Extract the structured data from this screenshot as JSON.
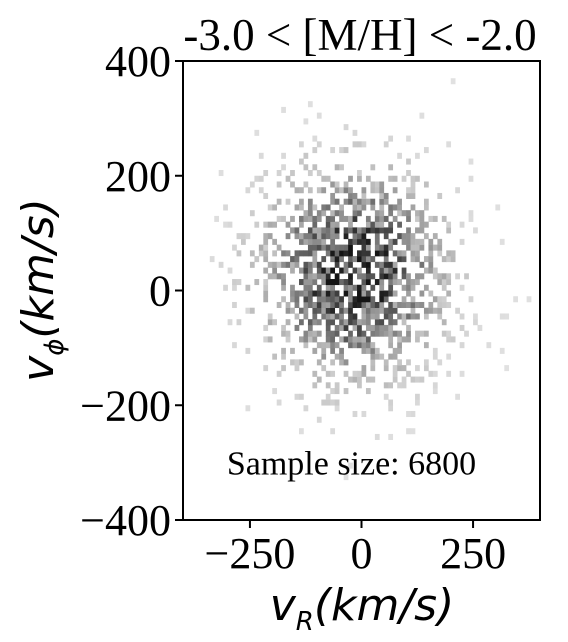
{
  "chart_data": {
    "type": "heatmap",
    "title": "-3.0 < [M/H] < -2.0",
    "xlabel": {
      "main": "v",
      "sub": "R",
      "unit": "(km/s)"
    },
    "ylabel": {
      "main": "v",
      "sub": "ϕ",
      "unit": "(km/s)"
    },
    "xlim": [
      -400,
      400
    ],
    "ylim": [
      -400,
      400
    ],
    "xticks": [
      -250,
      0,
      250
    ],
    "xtick_labels": [
      "−250",
      "0",
      "250"
    ],
    "yticks": [
      -400,
      -200,
      0,
      200,
      400
    ],
    "ytick_labels": [
      "−400",
      "−200",
      "0",
      "200",
      "400"
    ],
    "annotation": "Sample size: 6800",
    "sample_size": 6800,
    "colormap": "Greys",
    "distribution": {
      "shape": "2D gaussian-like density of stars",
      "center": [
        -20,
        30
      ],
      "sigma": [
        120,
        105
      ],
      "bin_size": [
        10,
        10
      ]
    },
    "grid": false,
    "legend": "none"
  }
}
